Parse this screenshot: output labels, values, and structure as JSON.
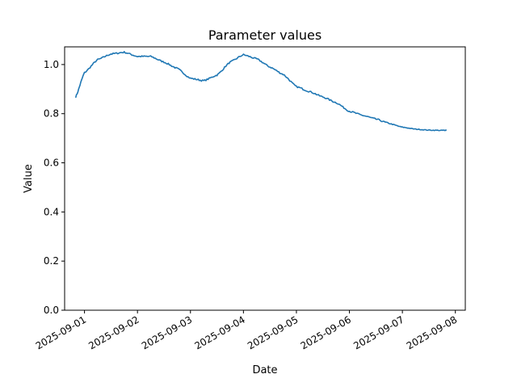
{
  "chart_data": {
    "type": "line",
    "title": "Parameter values",
    "xlabel": "Date",
    "ylabel": "Value",
    "ylim": [
      0,
      1.072
    ],
    "xlim": [
      "2025-08-31T15:00",
      "2025-09-08T04:30"
    ],
    "grid": false,
    "x_tick_labels": [
      "2025-09-01",
      "2025-09-02",
      "2025-09-03",
      "2025-09-04",
      "2025-09-05",
      "2025-09-06",
      "2025-09-07",
      "2025-09-08"
    ],
    "y_tick_labels": [
      "0.0",
      "0.2",
      "0.4",
      "0.6",
      "0.8",
      "1.0"
    ],
    "series": [
      {
        "color": "#1f77b4",
        "x": [
          "2025-08-31T20:00",
          "2025-09-01T00:00",
          "2025-09-01T06:00",
          "2025-09-01T12:00",
          "2025-09-01T18:00",
          "2025-09-02T00:00",
          "2025-09-02T06:00",
          "2025-09-02T12:00",
          "2025-09-02T18:00",
          "2025-09-03T00:00",
          "2025-09-03T06:00",
          "2025-09-03T12:00",
          "2025-09-03T18:00",
          "2025-09-04T00:00",
          "2025-09-04T06:00",
          "2025-09-04T12:00",
          "2025-09-04T18:00",
          "2025-09-05T00:00",
          "2025-09-05T06:00",
          "2025-09-05T12:00",
          "2025-09-05T18:00",
          "2025-09-06T00:00",
          "2025-09-06T06:00",
          "2025-09-06T12:00",
          "2025-09-06T18:00",
          "2025-09-07T00:00",
          "2025-09-07T06:00",
          "2025-09-07T12:00",
          "2025-09-07T18:00",
          "2025-09-07T20:00"
        ],
        "y": [
          0.868,
          0.967,
          1.02,
          1.043,
          1.05,
          1.033,
          1.033,
          1.01,
          0.984,
          0.944,
          0.934,
          0.957,
          1.01,
          1.04,
          1.023,
          0.99,
          0.96,
          0.91,
          0.89,
          0.868,
          0.845,
          0.81,
          0.793,
          0.778,
          0.76,
          0.745,
          0.737,
          0.733,
          0.732,
          0.733
        ]
      }
    ]
  }
}
